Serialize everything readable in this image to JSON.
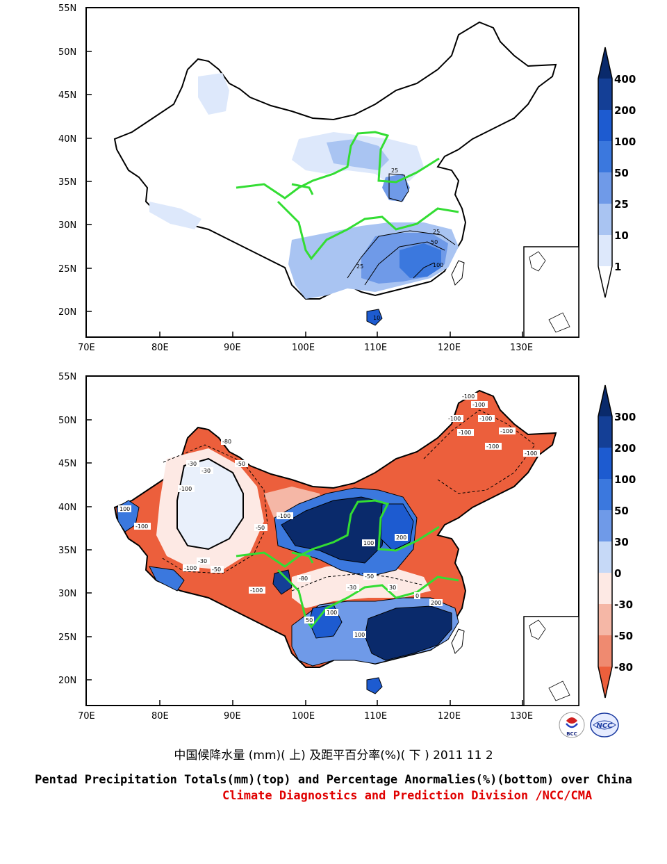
{
  "top_panel": {
    "lat_labels": [
      "55N",
      "50N",
      "45N",
      "40N",
      "35N",
      "30N",
      "25N",
      "20N"
    ],
    "lon_labels": [
      "70E",
      "80E",
      "90E",
      "100E",
      "110E",
      "120E",
      "130E"
    ],
    "colorbar_labels": [
      "400",
      "200",
      "100",
      "50",
      "25",
      "10",
      "1"
    ],
    "colorbar_colors": [
      "#0a2a6b",
      "#143f96",
      "#1d5bd0",
      "#3b78de",
      "#6f9ae8",
      "#a9c4f2",
      "#dde8fb",
      "#ffffff"
    ],
    "contour_labels": [
      "25",
      "25",
      "50",
      "25",
      "100",
      "10"
    ]
  },
  "bottom_panel": {
    "lat_labels": [
      "55N",
      "50N",
      "45N",
      "40N",
      "35N",
      "30N",
      "25N",
      "20N"
    ],
    "lon_labels": [
      "70E",
      "80E",
      "90E",
      "100E",
      "110E",
      "120E",
      "130E"
    ],
    "colorbar_labels": [
      "300",
      "200",
      "100",
      "50",
      "30",
      "0",
      "-30",
      "-50",
      "-80"
    ],
    "colorbar_colors": [
      "#0a2a6b",
      "#143f96",
      "#1d5bd0",
      "#3b78de",
      "#6f9ae8",
      "#c6d9f7",
      "#fde9e4",
      "#f5b7a6",
      "#ef8a70",
      "#ec5f3c"
    ],
    "contour_labels": [
      "-100",
      "-100",
      "-100",
      "-100",
      "-100",
      "-100",
      "-100",
      "-100",
      "-30",
      "-30",
      "-50",
      "-80",
      "-100",
      "100",
      "-100",
      "-30",
      "-50",
      "-100",
      "200",
      "100",
      "-100",
      "-50",
      "-80",
      "-100",
      "100",
      "100",
      "200",
      "-50",
      "-30",
      "50",
      "30",
      "0"
    ]
  },
  "captions": {
    "chinese": "中国候降水量 (mm)( 上) 及距平百分率(%)( 下 ) 2011 11 2",
    "english": "Pentad Precipitation Totals(mm)(top) and Percentage Anormalies(%)(bottom) over China",
    "credit": "Climate Diagnostics and Prediction Division /NCC/CMA"
  },
  "logos": {
    "left": "BCC",
    "right": "NCC"
  }
}
